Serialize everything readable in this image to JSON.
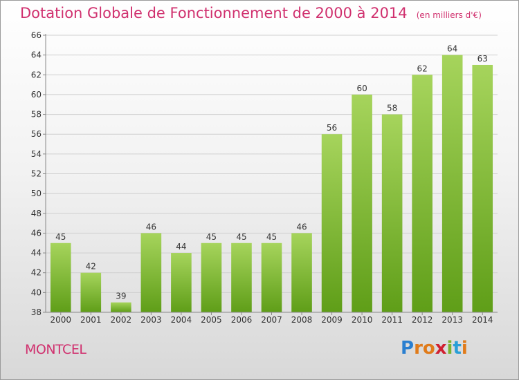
{
  "header": {
    "title": "Dotation Globale de Fonctionnement de 2000 à 2014",
    "subtitle": "(en milliers d'€)"
  },
  "footer": {
    "place": "MONTCEL",
    "logo": {
      "letters": [
        "P",
        "r",
        "o",
        "x",
        "i",
        "t",
        "i"
      ],
      "colors": [
        "#2a7fd0",
        "#e07b1a",
        "#e07b1a",
        "#d02030",
        "#7ab32e",
        "#2a9fd6",
        "#e07b1a"
      ]
    }
  },
  "chart_data": {
    "type": "bar",
    "categories": [
      "2000",
      "2001",
      "2002",
      "2003",
      "2004",
      "2005",
      "2006",
      "2007",
      "2008",
      "2009",
      "2010",
      "2011",
      "2012",
      "2013",
      "2014"
    ],
    "values": [
      45,
      42,
      39,
      46,
      44,
      45,
      45,
      45,
      46,
      56,
      60,
      58,
      62,
      64,
      63
    ],
    "data_labels": [
      "45",
      "42",
      "39",
      "46",
      "44",
      "45",
      "45",
      "45",
      "46",
      "56",
      "60",
      "58",
      "62",
      "64",
      "63"
    ],
    "yticks": [
      "38",
      "40",
      "42",
      "44",
      "46",
      "48",
      "50",
      "52",
      "54",
      "56",
      "58",
      "60",
      "62",
      "64",
      "66"
    ],
    "ylim": [
      38,
      66
    ],
    "ystep": 2,
    "grid": true,
    "bar_color_top": "#a6d45c",
    "bar_color_bottom": "#5f9e18"
  }
}
